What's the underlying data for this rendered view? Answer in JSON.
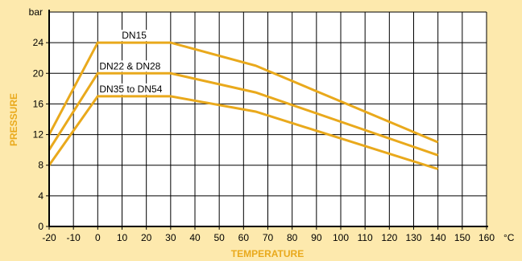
{
  "colors": {
    "background": "#fde9ad",
    "plot_area": "#ffffff",
    "series_line": "#e9a91c",
    "axis_title": "#e9a91c",
    "grid": "#000000"
  },
  "chart_data": {
    "type": "line",
    "xlabel": "TEMPERATURE",
    "ylabel": "PRESSURE",
    "x_unit": "°C",
    "y_unit": "bar",
    "xlim": [
      -20,
      160
    ],
    "ylim": [
      0,
      28
    ],
    "x_ticks": [
      -20,
      -10,
      0,
      10,
      20,
      30,
      40,
      50,
      60,
      70,
      80,
      90,
      100,
      110,
      120,
      130,
      140,
      150,
      160
    ],
    "y_ticks": [
      0,
      4,
      8,
      12,
      16,
      20,
      24
    ],
    "grid": true,
    "series": [
      {
        "name": "DN15",
        "x": [
          -20,
          0,
          30,
          65,
          140
        ],
        "y": [
          12,
          24,
          24,
          21,
          11
        ]
      },
      {
        "name": "DN22 & DN28",
        "x": [
          -20,
          0,
          30,
          65,
          140
        ],
        "y": [
          10,
          20,
          20,
          17.5,
          9.3
        ]
      },
      {
        "name": "DN35 to DN54",
        "x": [
          -20,
          0,
          30,
          65,
          140
        ],
        "y": [
          8,
          17,
          17,
          15,
          7.5
        ]
      }
    ]
  }
}
